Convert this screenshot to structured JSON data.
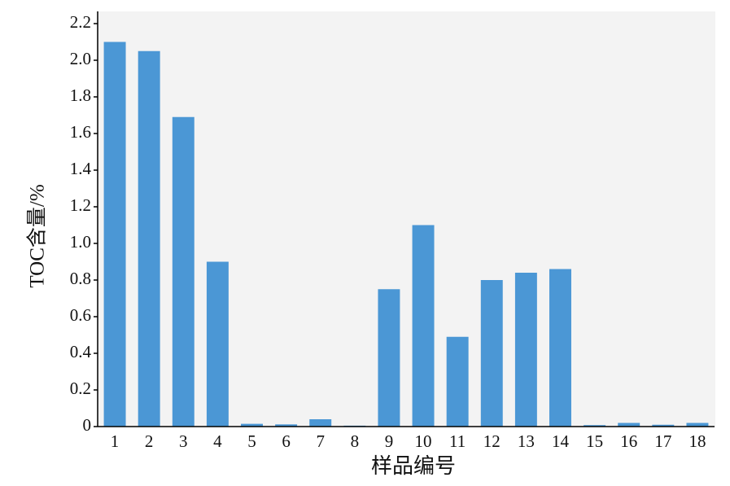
{
  "chart_data": {
    "type": "bar",
    "x_label": "样品编号",
    "y_label": "TOC含量/%",
    "categories": [
      "1",
      "2",
      "3",
      "4",
      "5",
      "6",
      "7",
      "8",
      "9",
      "10",
      "11",
      "12",
      "13",
      "14",
      "15",
      "16",
      "17",
      "18"
    ],
    "values": [
      2.1,
      2.05,
      1.69,
      0.9,
      0.015,
      0.012,
      0.04,
      0.005,
      0.75,
      1.1,
      0.49,
      0.8,
      0.84,
      0.86,
      0.008,
      0.02,
      0.01,
      0.02
    ],
    "color": "#4b97d5",
    "ylim": [
      0,
      2.2
    ],
    "yticks": [
      0,
      0.2,
      0.4,
      0.6,
      0.8,
      {
        "value": 1,
        "label": "1.0"
      },
      1.2,
      1.4,
      1.6,
      1.8,
      {
        "value": 2,
        "label": "2.0"
      },
      2.2
    ]
  }
}
